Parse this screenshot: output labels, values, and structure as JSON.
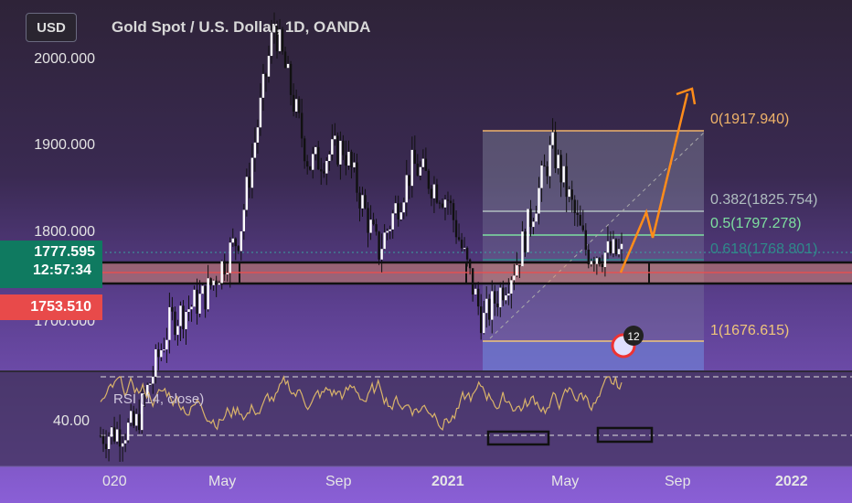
{
  "header": {
    "currency": "USD",
    "title": "Gold Spot / U.S. Dollar, 1D, OANDA"
  },
  "price_axis": {
    "labels": [
      "2000.000",
      "1900.000",
      "1800.000",
      "1700.000"
    ],
    "last_price": "1777.595",
    "countdown": "12:57:34",
    "marker_price": "1753.510"
  },
  "rsi": {
    "label": "RSI (14, close)",
    "axis_label": "40.00"
  },
  "time_axis": {
    "labels": [
      "020",
      "May",
      "Sep",
      "2021",
      "May",
      "Sep",
      "2022"
    ]
  },
  "fib": {
    "levels": [
      {
        "label": "0(1917.940)",
        "value": 1917.94,
        "color": "#f0b46a"
      },
      {
        "label": "0.382(1825.754)",
        "value": 1825.754,
        "color": "#b0bec0"
      },
      {
        "label": "0.5(1797.278)",
        "value": 1797.278,
        "color": "#7ee0a0"
      },
      {
        "label": "0.618(1768.801)",
        "value": 1768.801,
        "color": "#2f8a8a"
      },
      {
        "label": "1(1676.615)",
        "value": 1676.615,
        "color": "#f0c67a"
      }
    ]
  },
  "event_badge": {
    "count": "12"
  },
  "colors": {
    "last_price_bg": "#0f7a60",
    "marker_bg": "#e84a4a",
    "projection": "#ff8c1a",
    "rsi_line": "#d9b36a"
  },
  "chart_data": {
    "type": "candlestick",
    "title": "Gold Spot / U.S. Dollar, 1D, OANDA",
    "ylim": [
      1660,
      2070
    ],
    "y_ticks": [
      2000,
      1900,
      1800,
      1700
    ],
    "x_ticks": [
      "020",
      "May",
      "Sep",
      "2021",
      "May",
      "Sep",
      "2022"
    ],
    "close_path": [
      {
        "date": "2020-01",
        "price": 1570
      },
      {
        "date": "2020-03",
        "price": 1580
      },
      {
        "date": "2020-04",
        "price": 1700
      },
      {
        "date": "2020-06",
        "price": 1730
      },
      {
        "date": "2020-07",
        "price": 1800
      },
      {
        "date": "2020-08",
        "price": 2040
      },
      {
        "date": "2020-09",
        "price": 1880
      },
      {
        "date": "2020-10",
        "price": 1900
      },
      {
        "date": "2020-11",
        "price": 1780
      },
      {
        "date": "2020-12",
        "price": 1880
      },
      {
        "date": "2021-01",
        "price": 1840
      },
      {
        "date": "2021-03",
        "price": 1700
      },
      {
        "date": "2021-04",
        "price": 1770
      },
      {
        "date": "2021-05",
        "price": 1900
      },
      {
        "date": "2021-06",
        "price": 1780
      },
      {
        "date": "2021-07",
        "price": 1777.595
      }
    ],
    "horizontal_levels": [
      1777.595,
      1753.51
    ],
    "rsi_level": 40
  }
}
